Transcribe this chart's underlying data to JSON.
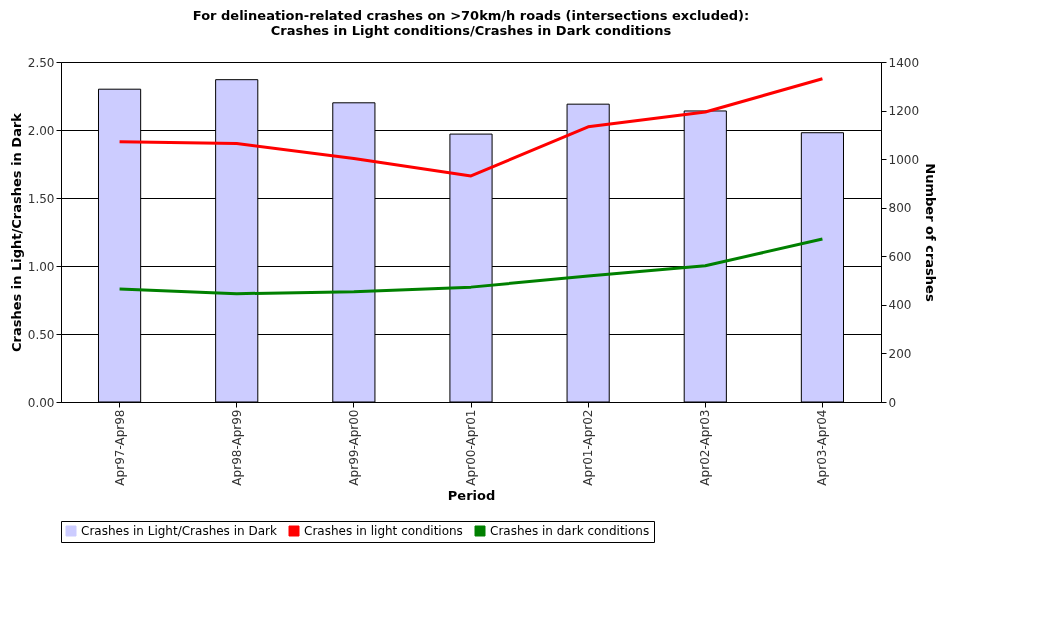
{
  "chart_data": {
    "type": "bar",
    "title": "For delineation-related crashes on >70km/h roads (intersections excluded):\nCrashes in Light conditions/Crashes in Dark conditions",
    "xlabel": "Period",
    "ylabel": "Crashes in Light/Crashes in Dark",
    "y2label": "Number of crashes",
    "categories": [
      "Apr97-Apr98",
      "Apr98-Apr99",
      "Apr99-Apr00",
      "Apr00-Apr01",
      "Apr01-Apr02",
      "Apr02-Apr03",
      "Apr03-Apr04"
    ],
    "series": [
      {
        "name": "Crashes in Light/Crashes in Dark",
        "color": "#ccccff",
        "values": [
          2.3,
          2.37,
          2.2,
          1.97,
          2.19,
          2.14,
          1.98
        ]
      },
      {
        "name": "Crashes in light conditions",
        "type": "line",
        "axis": "y2",
        "color": "#ff0000",
        "values": [
          1072,
          1064,
          1003,
          931,
          1133,
          1194,
          1331
        ]
      },
      {
        "name": "Crashes in dark conditions",
        "type": "line",
        "axis": "y2",
        "color": "#008000",
        "values": [
          465,
          446,
          454,
          473,
          519,
          561,
          671
        ]
      }
    ],
    "ylim": [
      0,
      2.5
    ],
    "yticks": [
      {
        "value": 0,
        "label": "0.00"
      },
      {
        "value": 0.5,
        "label": "0.50"
      },
      {
        "value": 1,
        "label": "1.00"
      },
      {
        "value": 1.5,
        "label": "1.50"
      },
      {
        "value": 2,
        "label": "2.00"
      },
      {
        "value": 2.5,
        "label": "2.50"
      }
    ],
    "y2lim": [
      0,
      1400
    ],
    "y2ticks": [
      0,
      200,
      400,
      600,
      800,
      1000,
      1200,
      1400
    ],
    "grid": "y",
    "legend": "bottom",
    "marker": "none",
    "line_style": "solid"
  }
}
